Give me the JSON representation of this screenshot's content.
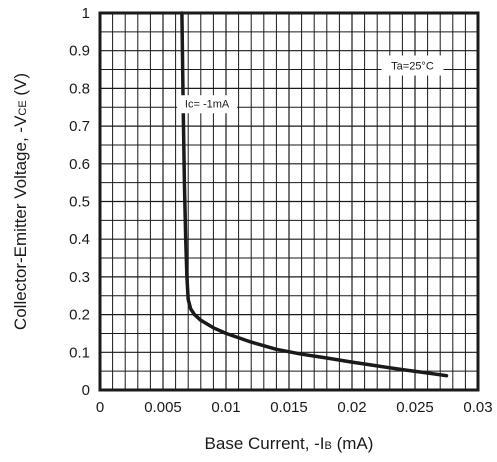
{
  "chart_data": {
    "type": "line",
    "x_label": {
      "prefix": "Base Current, -I",
      "sub": "B",
      "suffix": " (mA)"
    },
    "y_label": {
      "prefix": "Collector-Emitter Voltage, -V",
      "sub": "CE",
      "suffix": " (V)"
    },
    "xlim": [
      0,
      0.03
    ],
    "ylim": [
      0,
      1
    ],
    "x_ticks": [
      "0",
      "0.005",
      "0.01",
      "0.015",
      "0.02",
      "0.025",
      "0.03"
    ],
    "y_ticks": [
      "0",
      "0.1",
      "0.2",
      "0.3",
      "0.4",
      "0.5",
      "0.6",
      "0.7",
      "0.8",
      "0.9",
      "1"
    ],
    "grid": {
      "x_minor_per_major": 4,
      "y_minor_per_major": 1
    },
    "annotations": [
      {
        "text": "Ic= -1mA",
        "x": 0.0085,
        "y": 0.75
      },
      {
        "text": "Ta=25°C",
        "x": 0.0248,
        "y": 0.85,
        "boxed": true
      }
    ],
    "series": [
      {
        "x": [
          0.0065,
          0.0066,
          0.0067,
          0.0068,
          0.0069,
          0.007,
          0.0072,
          0.0075,
          0.008,
          0.009,
          0.01,
          0.012,
          0.014,
          0.016,
          0.018,
          0.02,
          0.022,
          0.024,
          0.026,
          0.0275
        ],
        "y": [
          1.0,
          0.75,
          0.55,
          0.4,
          0.3,
          0.24,
          0.215,
          0.2,
          0.185,
          0.165,
          0.15,
          0.127,
          0.108,
          0.095,
          0.085,
          0.074,
          0.064,
          0.054,
          0.045,
          0.038
        ]
      }
    ],
    "colors": {
      "line": "#1a1a1a",
      "grid": "#1a1a1a",
      "frame": "#1a1a1a"
    }
  }
}
